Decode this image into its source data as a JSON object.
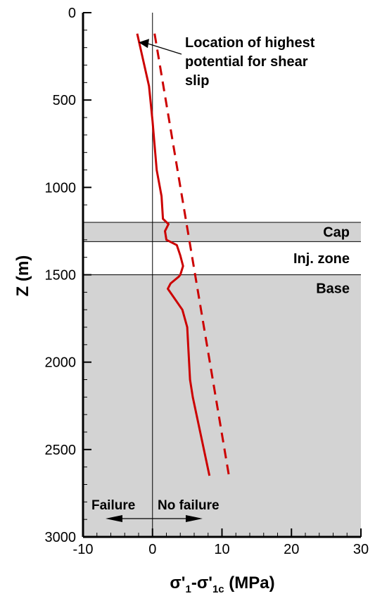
{
  "chart_data": {
    "type": "line",
    "xlabel_parts": [
      "σ'",
      "1",
      "-σ'",
      "1c",
      " (MPa)"
    ],
    "ylabel": "Z (m)",
    "xlim": [
      -10,
      30
    ],
    "ylim": [
      3000,
      0
    ],
    "y_inverted": true,
    "xticks": [
      {
        "value": -10,
        "label": "-10"
      },
      {
        "value": 0,
        "label": "0"
      },
      {
        "value": 10,
        "label": "10"
      },
      {
        "value": 20,
        "label": "20"
      },
      {
        "value": 30,
        "label": "30"
      }
    ],
    "yticks": [
      {
        "value": 0,
        "label": "0"
      },
      {
        "value": 500,
        "label": "500"
      },
      {
        "value": 1000,
        "label": "1000"
      },
      {
        "value": 1500,
        "label": "1500"
      },
      {
        "value": 2000,
        "label": "2000"
      },
      {
        "value": 2500,
        "label": "2500"
      },
      {
        "value": 3000,
        "label": "3000"
      }
    ],
    "layers": [
      {
        "name": "Cap",
        "top": 1200,
        "bottom": 1310,
        "shaded": true
      },
      {
        "name": "Inj. zone",
        "top": 1310,
        "bottom": 1500,
        "shaded": false
      },
      {
        "name": "Base",
        "top": 1500,
        "bottom": 3000,
        "shaded": true
      }
    ],
    "series": [
      {
        "style": "solid",
        "color": "#cc0000",
        "points": [
          {
            "x": -2.2,
            "y": 120
          },
          {
            "x": -0.5,
            "y": 420
          },
          {
            "x": 0.0,
            "y": 620
          },
          {
            "x": 0.6,
            "y": 900
          },
          {
            "x": 1.3,
            "y": 1050
          },
          {
            "x": 1.5,
            "y": 1180
          },
          {
            "x": 2.3,
            "y": 1210
          },
          {
            "x": 1.8,
            "y": 1250
          },
          {
            "x": 2.0,
            "y": 1300
          },
          {
            "x": 3.5,
            "y": 1330
          },
          {
            "x": 4.0,
            "y": 1390
          },
          {
            "x": 4.4,
            "y": 1450
          },
          {
            "x": 4.0,
            "y": 1500
          },
          {
            "x": 3.8,
            "y": 1510
          },
          {
            "x": 2.6,
            "y": 1550
          },
          {
            "x": 2.2,
            "y": 1580
          },
          {
            "x": 4.3,
            "y": 1700
          },
          {
            "x": 5.0,
            "y": 1800
          },
          {
            "x": 5.4,
            "y": 2100
          },
          {
            "x": 5.8,
            "y": 2200
          },
          {
            "x": 8.2,
            "y": 2650
          }
        ]
      },
      {
        "style": "dashed",
        "color": "#cc0000",
        "points": [
          {
            "x": 0.3,
            "y": 120
          },
          {
            "x": 11.0,
            "y": 2650
          }
        ]
      }
    ],
    "annotations": {
      "arrow_text": [
        "Location of highest",
        "potential for shear",
        "slip"
      ],
      "arrow_target": {
        "x": -2.0,
        "y": 170
      },
      "failure_label": "Failure",
      "no_failure_label": "No failure"
    },
    "colors": {
      "series": "#cc0000",
      "shade": "#d3d3d3",
      "axis": "#000000"
    }
  }
}
